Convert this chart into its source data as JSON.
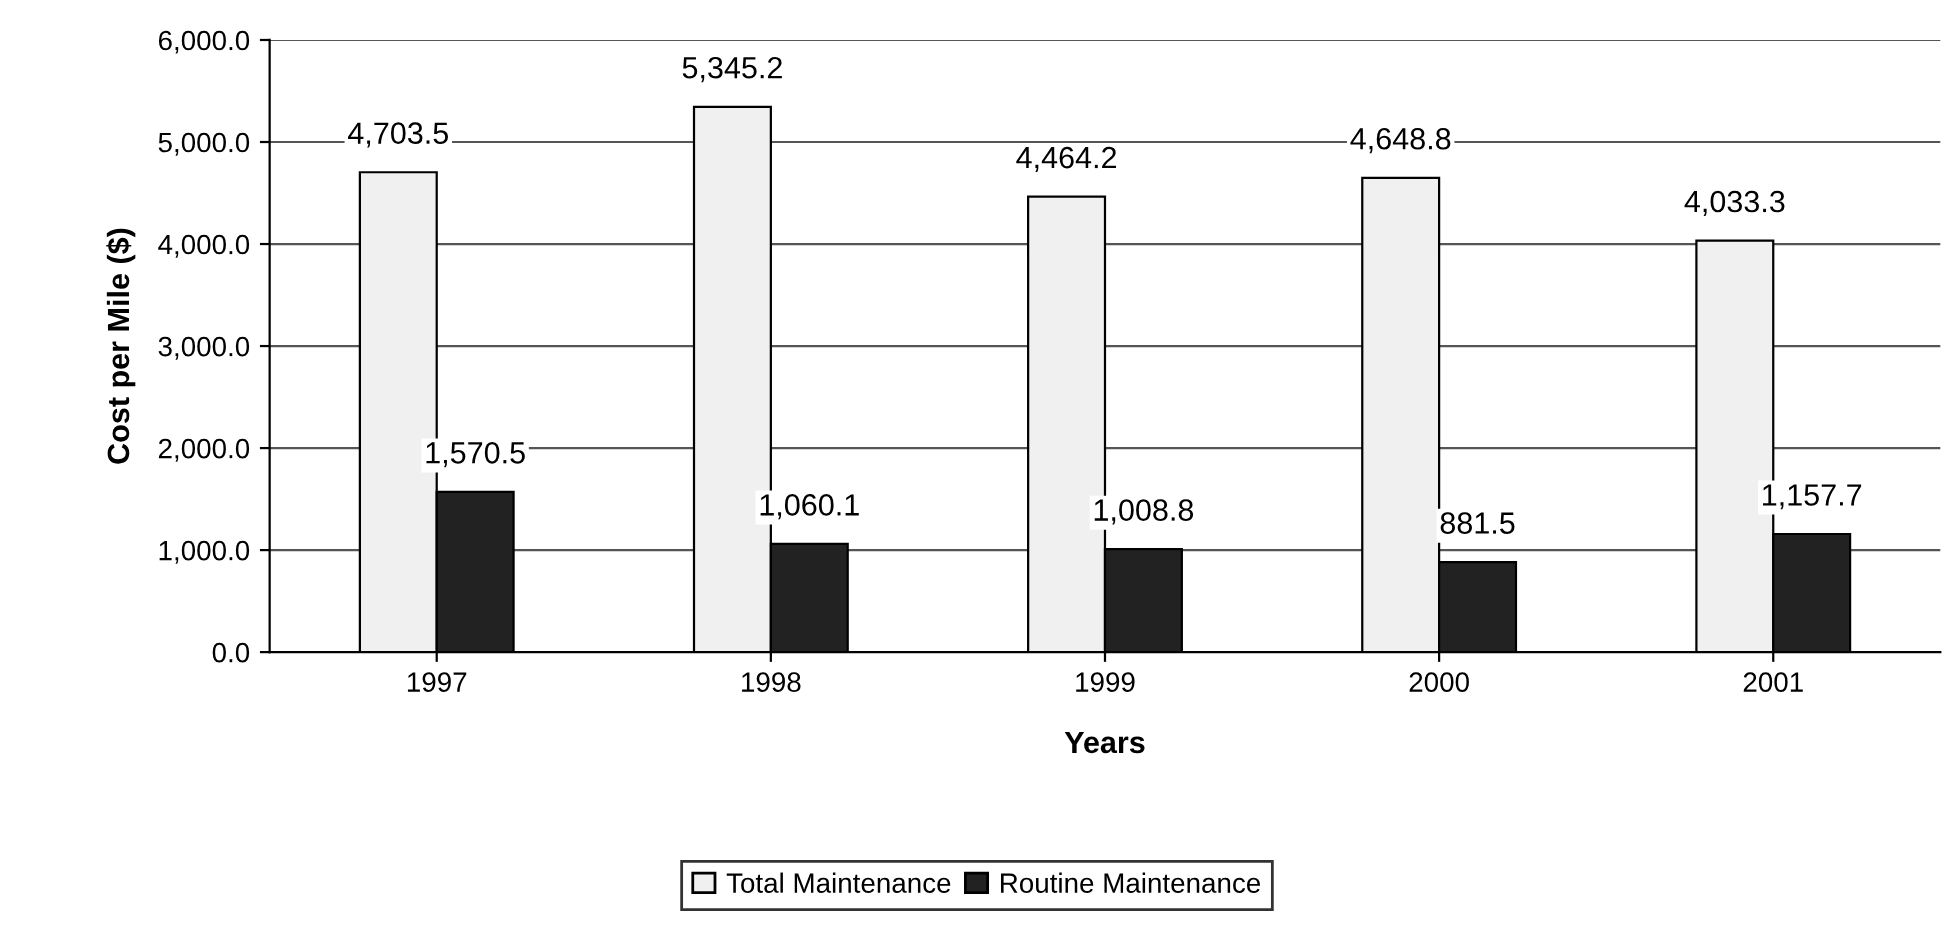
{
  "chart_data": {
    "type": "bar",
    "xlabel": "Years",
    "ylabel": "Cost per Mile ($)",
    "categories": [
      "1997",
      "1998",
      "1999",
      "2000",
      "2001"
    ],
    "series": [
      {
        "name": "Total Maintenance",
        "color": "#f0f0f0",
        "values": [
          4703.5,
          5345.2,
          4464.2,
          4648.8,
          4033.3
        ],
        "value_labels": [
          "4,703.5",
          "5,345.2",
          "4,464.2",
          "4,648.8",
          "4,033.3"
        ]
      },
      {
        "name": "Routine Maintenance",
        "color": "#222222",
        "values": [
          1570.5,
          1060.1,
          1008.8,
          881.5,
          1157.7
        ],
        "value_labels": [
          "1,570.5",
          "1,060.1",
          "1,008.8",
          "881.5",
          "1,157.7"
        ]
      }
    ],
    "ylim": [
      0,
      6000
    ],
    "yticks": [
      {
        "value": 0,
        "label": "0.0"
      },
      {
        "value": 1000,
        "label": "1,000.0"
      },
      {
        "value": 2000,
        "label": "2,000.0"
      },
      {
        "value": 3000,
        "label": "3,000.0"
      },
      {
        "value": 4000,
        "label": "4,000.0"
      },
      {
        "value": 5000,
        "label": "5,000.0"
      },
      {
        "value": 6000,
        "label": "6,000.0"
      }
    ],
    "grid": "y",
    "legend": "bottom"
  }
}
